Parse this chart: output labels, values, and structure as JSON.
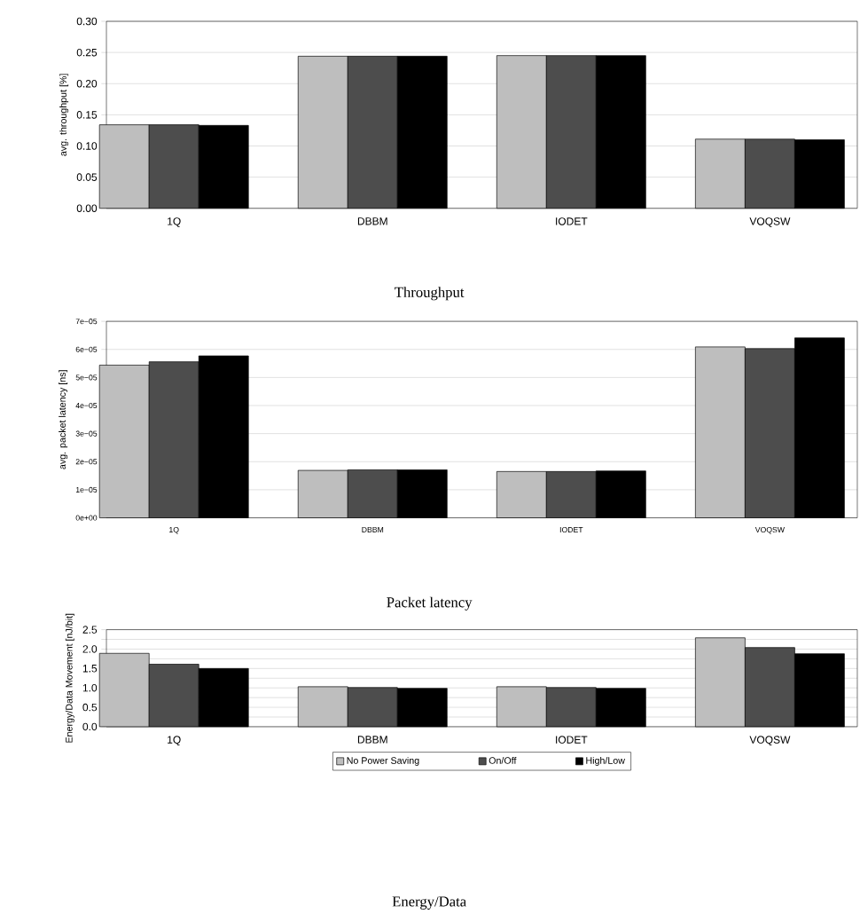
{
  "chart_data": [
    {
      "type": "bar",
      "title": "Throughput",
      "ylabel": "avg. throughput [%]",
      "categories": [
        "1Q",
        "DBBM",
        "IODET",
        "VOQSW"
      ],
      "series": [
        {
          "color": "#bebebe",
          "values": [
            0.134,
            0.244,
            0.245,
            0.111
          ]
        },
        {
          "color": "#4d4d4d",
          "values": [
            0.134,
            0.244,
            0.245,
            0.111
          ]
        },
        {
          "color": "#000000",
          "values": [
            0.133,
            0.244,
            0.245,
            0.11
          ]
        }
      ],
      "ylim": [
        0,
        0.3
      ],
      "yticks": [
        {
          "value": 0,
          "label": "0.00"
        },
        {
          "value": 0.05,
          "label": "0.05"
        },
        {
          "value": 0.1,
          "label": "0.10"
        },
        {
          "value": 0.15,
          "label": "0.15"
        },
        {
          "value": 0.2,
          "label": "0.20"
        },
        {
          "value": 0.25,
          "label": "0.25"
        },
        {
          "value": 0.3,
          "label": "0.30"
        }
      ],
      "grid": "y"
    },
    {
      "type": "bar",
      "title": "Packet latency",
      "ylabel": "avg. packet latency [ns]",
      "categories": [
        "1Q",
        "DBBM",
        "IODET",
        "VOQSW"
      ],
      "series": [
        {
          "color": "#bebebe",
          "values": [
            5.44e-05,
            1.69e-05,
            1.65e-05,
            6.09e-05
          ]
        },
        {
          "color": "#4d4d4d",
          "values": [
            5.56e-05,
            1.71e-05,
            1.65e-05,
            6.03e-05
          ]
        },
        {
          "color": "#000000",
          "values": [
            5.77e-05,
            1.71e-05,
            1.67e-05,
            6.41e-05
          ]
        }
      ],
      "ylim": [
        0,
        7e-05
      ],
      "yticks": [
        {
          "value": 0,
          "label": "0e+00"
        },
        {
          "value": 1e-05,
          "label": "1e−05"
        },
        {
          "value": 2e-05,
          "label": "2e−05"
        },
        {
          "value": 3e-05,
          "label": "3e−05"
        },
        {
          "value": 4e-05,
          "label": "4e−05"
        },
        {
          "value": 5e-05,
          "label": "5e−05"
        },
        {
          "value": 6e-05,
          "label": "6e−05"
        },
        {
          "value": 7e-05,
          "label": "7e−05"
        }
      ],
      "grid": "y"
    },
    {
      "type": "bar",
      "title": "Energy/Data",
      "ylabel": "Energy/Data Movement [nJ/bit]",
      "categories": [
        "1Q",
        "DBBM",
        "IODET",
        "VOQSW"
      ],
      "series": [
        {
          "name": "No Power Saving",
          "color": "#bebebe",
          "values": [
            1.89,
            1.03,
            1.03,
            2.29
          ]
        },
        {
          "name": "On/Off",
          "color": "#4d4d4d",
          "values": [
            1.61,
            1.01,
            1.01,
            2.04
          ]
        },
        {
          "name": "High/Low",
          "color": "#000000",
          "values": [
            1.5,
            0.99,
            0.99,
            1.88
          ]
        }
      ],
      "ylim": [
        0,
        2.5
      ],
      "yticks": [
        {
          "value": 0,
          "label": "0.0"
        },
        {
          "value": 0.25,
          "label": null
        },
        {
          "value": 0.5,
          "label": "0.5"
        },
        {
          "value": 0.75,
          "label": null
        },
        {
          "value": 1,
          "label": "1.0"
        },
        {
          "value": 1.25,
          "label": null
        },
        {
          "value": 1.5,
          "label": "1.5"
        },
        {
          "value": 1.75,
          "label": null
        },
        {
          "value": 2,
          "label": "2.0"
        },
        {
          "value": 2.25,
          "label": null
        },
        {
          "value": 2.5,
          "label": "2.5"
        }
      ],
      "grid": "y",
      "legend": "bottom"
    }
  ]
}
